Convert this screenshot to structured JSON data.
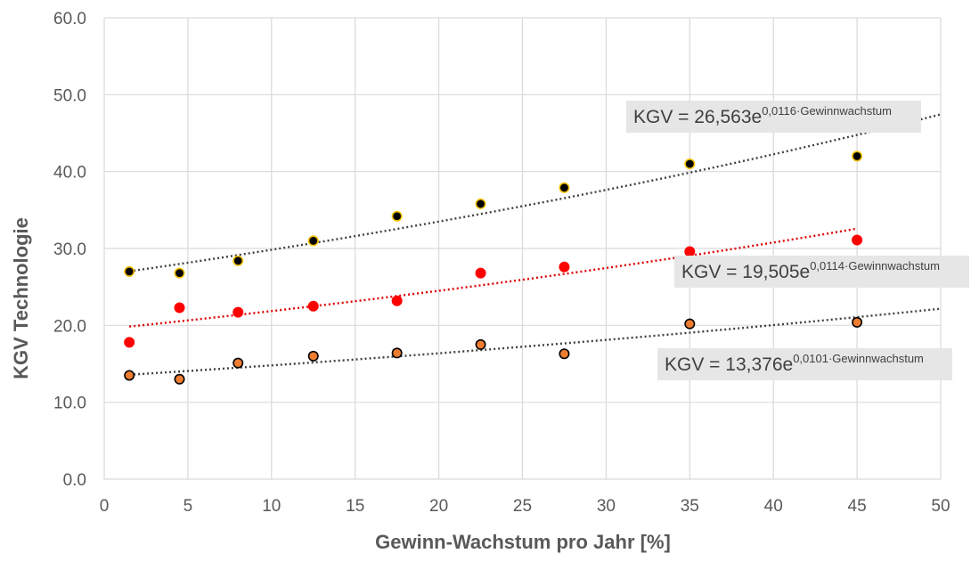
{
  "chart_data": {
    "type": "scatter",
    "title": "",
    "xlabel": "Gewinn-Wachstum pro Jahr [%]",
    "ylabel": "KGV Technologie",
    "xlim": [
      0,
      50
    ],
    "ylim": [
      0,
      60
    ],
    "x_ticks": [
      0,
      5,
      10,
      15,
      20,
      25,
      30,
      35,
      40,
      45,
      50
    ],
    "y_ticks": [
      0,
      10,
      20,
      30,
      40,
      50,
      60
    ],
    "y_tick_labels": [
      "0.0",
      "10.0",
      "20.0",
      "30.0",
      "40.0",
      "50.0",
      "60.0"
    ],
    "grid": true,
    "series": [
      {
        "fill": "#000000",
        "edge": "#F2C000",
        "x": [
          1.5,
          4.5,
          8,
          12.5,
          17.5,
          22.5,
          27.5,
          35,
          45
        ],
        "y": [
          27.0,
          26.8,
          28.4,
          31.0,
          34.2,
          35.8,
          37.9,
          41.0,
          42.0
        ],
        "trend": {
          "a": 26.563,
          "b": 0.0116,
          "x_range": [
            1.5,
            50
          ],
          "color": "#404040"
        },
        "annotation": {
          "prefix": "KGV = 26,563e",
          "superscript": "0,0116·Gewinnwachstum"
        }
      },
      {
        "fill": "#FF0000",
        "edge": "#FF0000",
        "x": [
          1.5,
          4.5,
          8,
          12.5,
          17.5,
          22.5,
          27.5,
          35,
          45
        ],
        "y": [
          17.8,
          22.3,
          21.7,
          22.5,
          23.2,
          26.8,
          27.6,
          29.6,
          31.1
        ],
        "trend": {
          "a": 19.505,
          "b": 0.0114,
          "x_range": [
            1.5,
            45
          ],
          "color": "#E00000"
        },
        "annotation": {
          "prefix": "KGV = 19,505e",
          "superscript": "0,0114·Gewinnwachstum"
        }
      },
      {
        "fill": "#ED7D31",
        "edge": "#000000",
        "x": [
          1.5,
          4.5,
          8,
          12.5,
          17.5,
          22.5,
          27.5,
          35,
          45
        ],
        "y": [
          13.5,
          13.0,
          15.1,
          16.0,
          16.4,
          17.5,
          16.3,
          20.2,
          20.4
        ],
        "trend": {
          "a": 13.376,
          "b": 0.0101,
          "x_range": [
            1.5,
            50
          ],
          "color": "#404040"
        },
        "annotation": {
          "prefix": "KGV = 13,376e",
          "superscript": "0,0101·Gewinnwachstum"
        }
      }
    ]
  }
}
